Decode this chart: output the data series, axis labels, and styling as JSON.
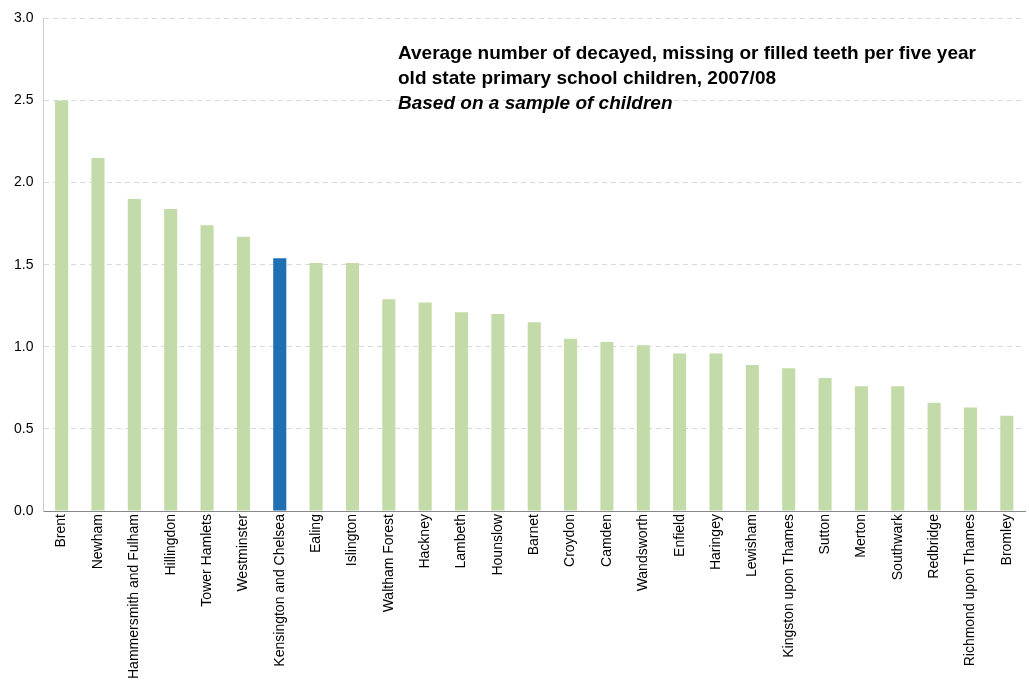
{
  "chart_data": {
    "type": "bar",
    "title": "Average number of decayed, missing or filled teeth per five year old state primary school children, 2007/08",
    "subtitle": "Based on a sample of children",
    "categories": [
      "Brent",
      "Newham",
      "Hammersmith and Fulham",
      "Hillingdon",
      "Tower Hamlets",
      "Westminster",
      "Kensington and Chelsea",
      "Ealing",
      "Islington",
      "Waltham Forest",
      "Hackney",
      "Lambeth",
      "Hounslow",
      "Barnet",
      "Croydon",
      "Camden",
      "Wandsworth",
      "Enfield",
      "Haringey",
      "Lewisham",
      "Kingston upon Thames",
      "Sutton",
      "Merton",
      "Southwark",
      "Redbridge",
      "Richmond upon Thames",
      "Bromley"
    ],
    "values": [
      2.5,
      2.15,
      1.9,
      1.84,
      1.74,
      1.67,
      1.54,
      1.51,
      1.51,
      1.29,
      1.27,
      1.21,
      1.2,
      1.15,
      1.05,
      1.03,
      1.01,
      0.96,
      0.96,
      0.89,
      0.87,
      0.81,
      0.76,
      0.76,
      0.66,
      0.63,
      0.58
    ],
    "colors": [
      "#c3dba8",
      "#c3dba8",
      "#c3dba8",
      "#c3dba8",
      "#c3dba8",
      "#c3dba8",
      "#1f6fb5",
      "#c3dba8",
      "#c3dba8",
      "#c3dba8",
      "#c3dba8",
      "#c3dba8",
      "#c3dba8",
      "#c3dba8",
      "#c3dba8",
      "#c3dba8",
      "#c3dba8",
      "#c3dba8",
      "#c3dba8",
      "#c3dba8",
      "#c3dba8",
      "#c3dba8",
      "#c3dba8",
      "#c3dba8",
      "#c3dba8",
      "#c3dba8",
      "#c3dba8"
    ],
    "ylim": [
      0,
      3
    ],
    "yticks": [
      {
        "value": 0,
        "label": "0.0"
      },
      0.5,
      {
        "value": 1,
        "label": "1.0"
      },
      1.5,
      {
        "value": 2,
        "label": "2.0"
      },
      2.5,
      {
        "value": 3,
        "label": "3.0"
      }
    ],
    "grid": "y"
  }
}
